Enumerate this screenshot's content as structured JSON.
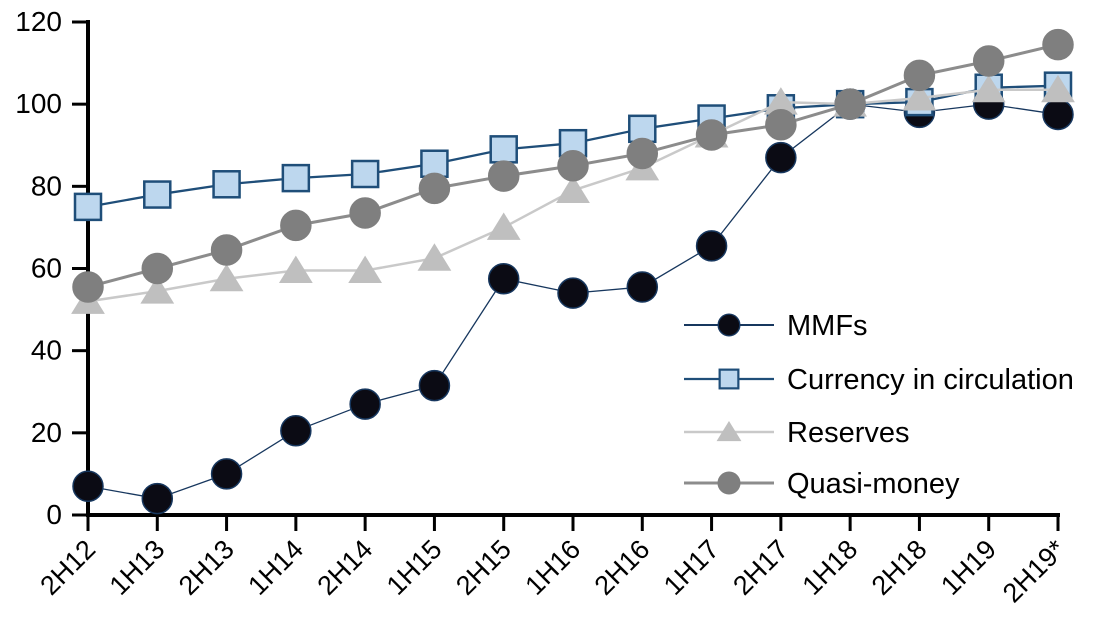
{
  "chart_data": {
    "type": "line",
    "title": "",
    "xlabel": "",
    "ylabel": "",
    "ylim": [
      0,
      120
    ],
    "yticks": [
      0,
      20,
      40,
      60,
      80,
      100,
      120
    ],
    "grid": false,
    "axis_color": "#000000",
    "background_color": "#ffffff",
    "legend_position": "inside-right",
    "categories": [
      "2H12",
      "1H13",
      "2H13",
      "1H14",
      "2H14",
      "1H15",
      "2H15",
      "1H16",
      "2H16",
      "1H17",
      "2H17",
      "1H18",
      "2H18",
      "1H19",
      "2H19*"
    ],
    "series": [
      {
        "name": "MMFs",
        "marker": "circle",
        "marker_fill": "#0b0b14",
        "marker_stroke": "#17375e",
        "line_color": "#17375e",
        "line_width": 1.3,
        "values": [
          7,
          4,
          10,
          20.5,
          27,
          31.5,
          57.5,
          54,
          55.5,
          65.5,
          87,
          100,
          98,
          100,
          97.5
        ]
      },
      {
        "name": "Currency in circulation",
        "marker": "square",
        "marker_fill": "#bdd7ee",
        "marker_stroke": "#1f4e79",
        "line_color": "#1f4e79",
        "line_width": 2.3,
        "values": [
          75,
          78,
          80.5,
          82,
          83,
          85.5,
          89,
          90.5,
          94,
          96.5,
          99,
          100,
          100.5,
          104,
          104.5
        ]
      },
      {
        "name": "Reserves",
        "marker": "triangle",
        "marker_fill": "#bfbfbf",
        "marker_stroke": "#bfbfbf",
        "line_color": "#c9c9c9",
        "line_width": 2.5,
        "values": [
          52,
          54.5,
          57.5,
          59.5,
          59.5,
          62.5,
          70,
          79,
          84.5,
          92.5,
          100.5,
          100,
          101.5,
          103.5,
          103.5
        ]
      },
      {
        "name": "Quasi-money",
        "marker": "circle",
        "marker_fill": "#7f7f7f",
        "marker_stroke": "#7f7f7f",
        "line_color": "#8c8c8c",
        "line_width": 3,
        "values": [
          55.5,
          60,
          64.5,
          70.5,
          73.5,
          79.5,
          82.5,
          85,
          88,
          92.5,
          95,
          100,
          107,
          110.5,
          114.5
        ]
      }
    ]
  }
}
